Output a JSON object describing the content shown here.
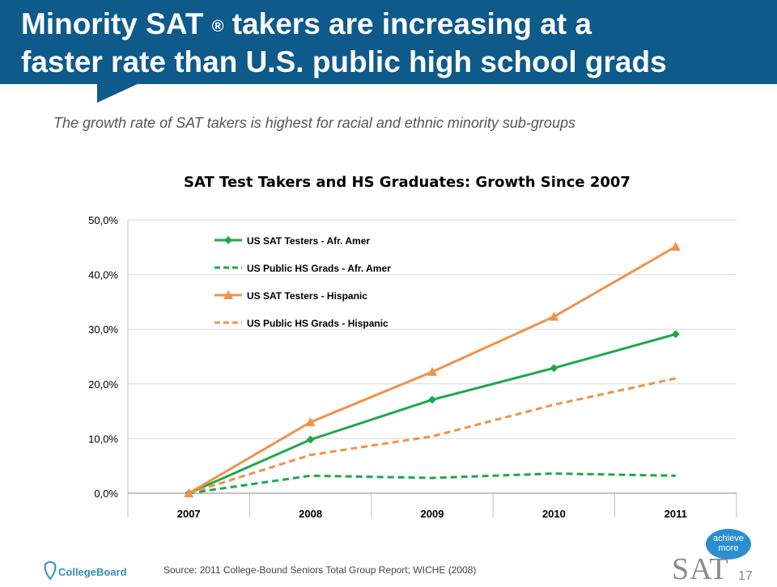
{
  "header": {
    "title_line1_a": "Minority SAT",
    "title_reg": "®",
    "title_line1_b": "takers are increasing at a",
    "title_line2": "faster rate than U.S. public high school grads",
    "subtitle": "The growth rate of SAT takers is highest for racial and ethnic minority sub-groups",
    "banner_color": "#0e5a8a"
  },
  "chart_data": {
    "type": "line",
    "title": "SAT Test Takers and HS Graduates: Growth Since 2007",
    "categories": [
      "2007",
      "2008",
      "2009",
      "2010",
      "2011"
    ],
    "ylim": [
      0,
      50
    ],
    "yticks": [
      0,
      10,
      20,
      30,
      40,
      50
    ],
    "ytick_labels": [
      "0,0%",
      "10,0%",
      "20,0%",
      "30,0%",
      "40,0%",
      "50,0%"
    ],
    "grid": true,
    "legend_position": "top-left",
    "series": [
      {
        "name": "US SAT Testers - Afr. Amer",
        "color": "#1ea84a",
        "style": "solid",
        "marker": "diamond",
        "values": [
          0,
          9.8,
          17.1,
          22.9,
          29.1
        ]
      },
      {
        "name": "US Public HS Grads - Afr. Amer",
        "color": "#1ea84a",
        "style": "dashed",
        "marker": "none",
        "values": [
          0,
          3.2,
          2.8,
          3.6,
          3.2
        ]
      },
      {
        "name": "US SAT Testers - Hispanic",
        "color": "#f0924a",
        "style": "solid",
        "marker": "triangle",
        "values": [
          0,
          13.0,
          22.2,
          32.3,
          45.1
        ]
      },
      {
        "name": "US Public HS Grads - Hispanic",
        "color": "#f0924a",
        "style": "dashed",
        "marker": "none",
        "values": [
          0,
          7.0,
          10.4,
          16.2,
          21.0
        ]
      }
    ]
  },
  "footer": {
    "source": "Source: 2011 College-Bound Seniors Total Group Report; WICHE (2008)",
    "collegeboard": "CollegeBoard",
    "achieve": "achieve more",
    "sat": "SAT",
    "page_number": "17"
  }
}
